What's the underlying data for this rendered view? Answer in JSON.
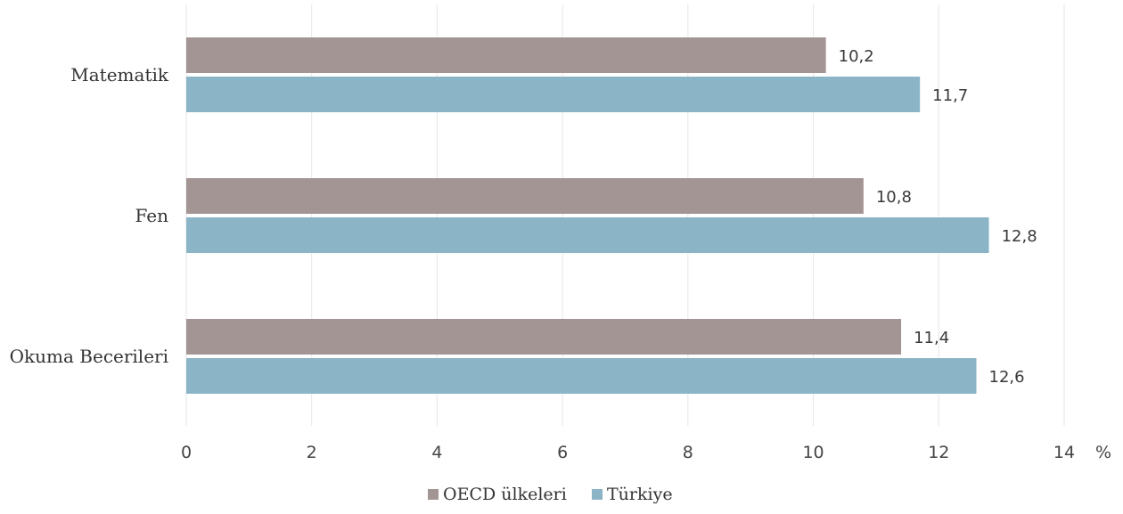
{
  "chart_data": {
    "type": "bar",
    "orientation": "horizontal",
    "categories": [
      "Matematik",
      "Fen",
      "Okuma Becerileri"
    ],
    "series": [
      {
        "name": "OECD ülkeleri",
        "color": "#a29593",
        "values": [
          10.2,
          10.8,
          11.4
        ],
        "labels": [
          "10,2",
          "10,8",
          "11,4"
        ]
      },
      {
        "name": "Türkiye",
        "color": "#8bb5c6",
        "values": [
          11.7,
          12.8,
          12.6
        ],
        "labels": [
          "11,7",
          "12,8",
          "12,6"
        ]
      }
    ],
    "xlim": [
      0,
      14
    ],
    "xticks": [
      0,
      2,
      4,
      6,
      8,
      10,
      12,
      14
    ],
    "xtick_labels": [
      "0",
      "2",
      "4",
      "6",
      "8",
      "10",
      "12",
      "14"
    ],
    "unit": "%",
    "grid": "vertical",
    "legend_position": "bottom-center"
  }
}
